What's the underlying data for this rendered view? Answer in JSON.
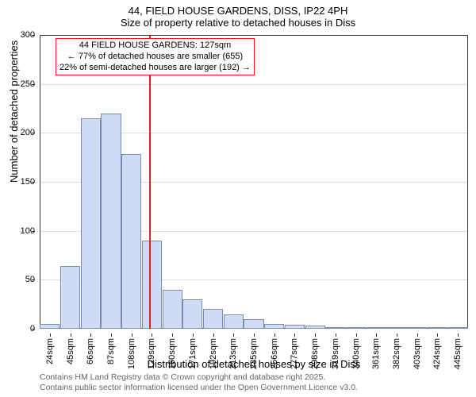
{
  "title_main": "44, FIELD HOUSE GARDENS, DISS, IP22 4PH",
  "title_sub": "Size of property relative to detached houses in Diss",
  "y_label": "Number of detached properties",
  "x_label": "Distribution of detached houses by size in Diss",
  "chart": {
    "type": "histogram",
    "ylim": [
      0,
      300
    ],
    "ytick_step": 50,
    "bar_fill": "#d0dcf5",
    "bar_border": "#7a8bb0",
    "grid_color": "#dddddd",
    "background_color": "#ffffff",
    "marker_line_color": "#e02020",
    "marker_x_value": 127,
    "categories": [
      "24sqm",
      "45sqm",
      "66sqm",
      "87sqm",
      "108sqm",
      "129sqm",
      "150sqm",
      "171sqm",
      "192sqm",
      "213sqm",
      "235sqm",
      "256sqm",
      "277sqm",
      "298sqm",
      "319sqm",
      "340sqm",
      "361sqm",
      "382sqm",
      "403sqm",
      "424sqm",
      "445sqm"
    ],
    "values": [
      5,
      64,
      215,
      220,
      178,
      90,
      40,
      30,
      20,
      15,
      10,
      5,
      4,
      3,
      2,
      2,
      2,
      1,
      1,
      1,
      1
    ],
    "category_numeric_start": 24,
    "category_numeric_step": 21
  },
  "annotation": {
    "line1": "44 FIELD HOUSE GARDENS: 127sqm",
    "line2": "← 77% of detached houses are smaller (655)",
    "line3": "22% of semi-detached houses are larger (192) →"
  },
  "footer": {
    "line1": "Contains HM Land Registry data © Crown copyright and database right 2025.",
    "line2": "Contains public sector information licensed under the Open Government Licence v3.0."
  }
}
